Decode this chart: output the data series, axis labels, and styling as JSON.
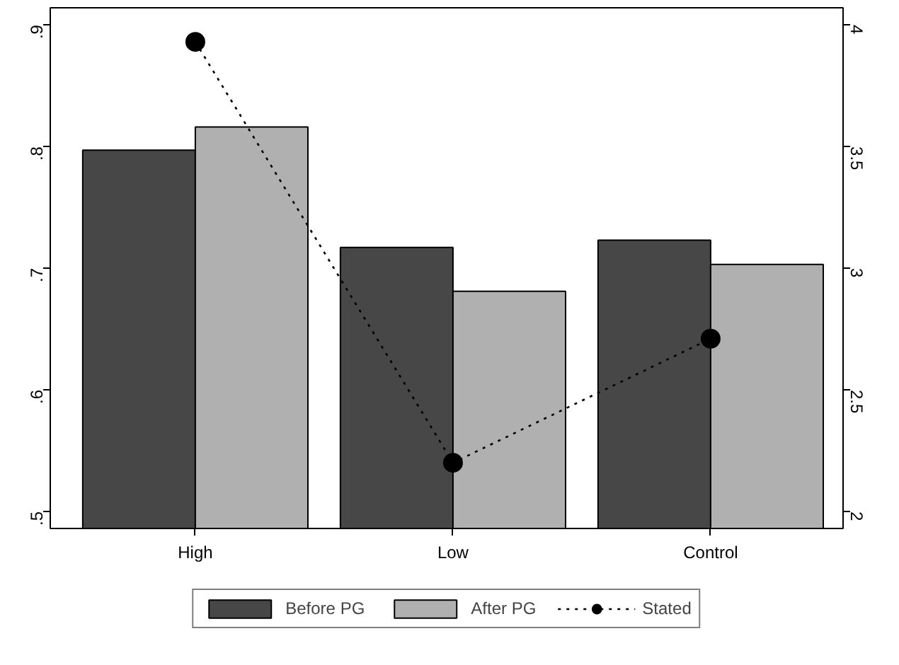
{
  "chart_data": {
    "type": "bar",
    "categories": [
      "High",
      "Low",
      "Control"
    ],
    "series": [
      {
        "name": "Before PG",
        "color": "#474747",
        "values": [
          0.797,
          0.717,
          0.723
        ]
      },
      {
        "name": "After PG",
        "color": "#b0b0b0",
        "values": [
          0.816,
          0.681,
          0.703
        ]
      },
      {
        "name": "Stated",
        "type": "line",
        "axis": "y2",
        "color": "#000000",
        "marker": "circle",
        "line_style": "dotted",
        "values": [
          3.93,
          2.2,
          2.71
        ]
      }
    ],
    "ylim": [
      0.486,
      0.914
    ],
    "yticks": [
      {
        "value": 0.5,
        "label": ".5"
      },
      {
        "value": 0.6,
        "label": ".6"
      },
      {
        "value": 0.7,
        "label": ".7"
      },
      {
        "value": 0.8,
        "label": ".8"
      },
      {
        "value": 0.9,
        "label": ".9"
      }
    ],
    "y2lim": [
      1.93,
      4.07
    ],
    "y2ticks": [
      2,
      2.5,
      3,
      3.5,
      4
    ],
    "grid": false,
    "legend": "bottom"
  }
}
